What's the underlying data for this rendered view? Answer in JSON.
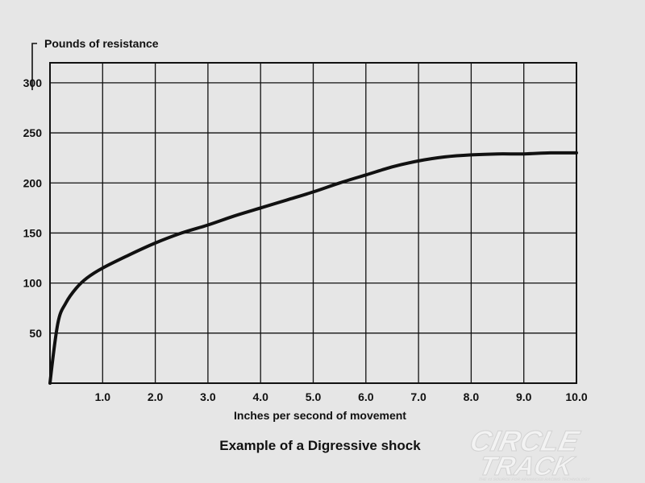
{
  "chart_data": {
    "type": "line",
    "title": "Example of a Digressive shock",
    "xlabel": "Inches per second of movement",
    "ylabel": "Pounds of resistance",
    "xlim": [
      0,
      10
    ],
    "ylim": [
      0,
      320
    ],
    "x_ticks": [
      "1.0",
      "2.0",
      "3.0",
      "4.0",
      "5.0",
      "6.0",
      "7.0",
      "8.0",
      "9.0",
      "10.0"
    ],
    "y_ticks": [
      "50",
      "100",
      "150",
      "200",
      "250",
      "300"
    ],
    "grid": true,
    "series": [
      {
        "x": [
          0,
          0.15,
          0.3,
          0.5,
          0.7,
          1.0,
          1.5,
          2.0,
          2.5,
          3.0,
          3.5,
          4.0,
          4.5,
          5.0,
          5.5,
          6.0,
          6.5,
          7.0,
          7.5,
          8.0,
          8.5,
          9.0,
          9.5,
          10.0
        ],
        "y": [
          0,
          60,
          80,
          95,
          105,
          115,
          128,
          140,
          150,
          158,
          167,
          175,
          183,
          191,
          200,
          208,
          216,
          222,
          226,
          228,
          229,
          229,
          230,
          230
        ]
      }
    ]
  },
  "watermark": {
    "line1": "CIRCLE",
    "line2": "TRACK",
    "tagline": "THE #1 SOURCE FOR ADVANCED RACING TECHNOLOGY"
  }
}
